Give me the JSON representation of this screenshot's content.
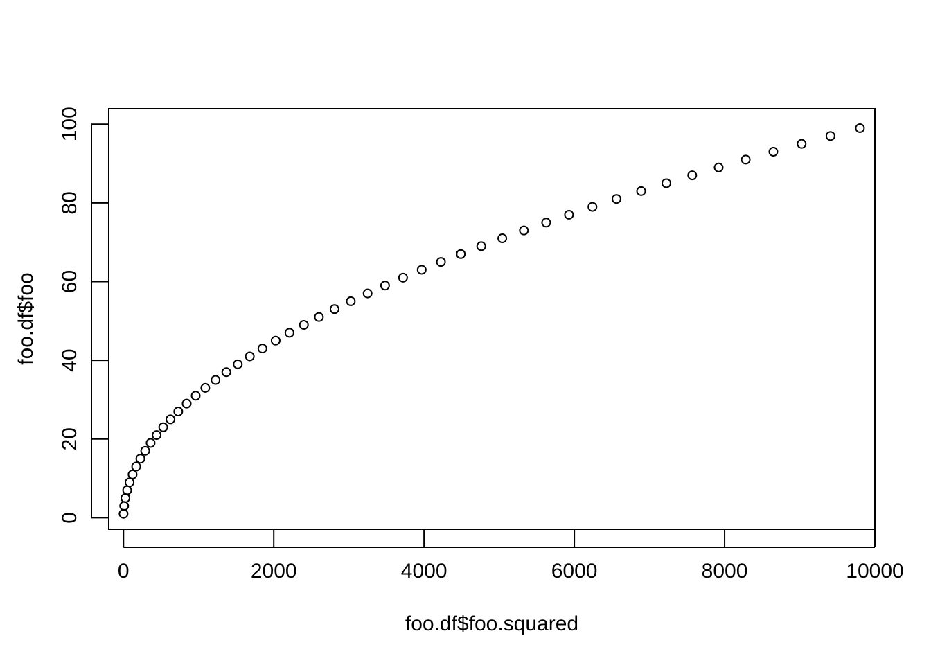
{
  "chart_data": {
    "type": "scatter",
    "title": "",
    "xlabel": "foo.df$foo.squared",
    "ylabel": "foo.df$foo",
    "xlim": [
      -196,
      10000
    ],
    "ylim": [
      -2.92,
      103.92
    ],
    "x_ticks": [
      0,
      2000,
      4000,
      6000,
      8000,
      10000
    ],
    "x_tick_labels": [
      "0",
      "2000",
      "4000",
      "6000",
      "8000",
      "10000"
    ],
    "y_ticks": [
      0,
      20,
      40,
      60,
      80,
      100
    ],
    "y_tick_labels": [
      "0",
      "20",
      "40",
      "60",
      "80",
      "100"
    ],
    "grid": false,
    "marker": "open-circle",
    "point_color": "#000000",
    "series": [
      {
        "x": [
          1,
          9,
          25,
          49,
          81,
          121,
          169,
          225,
          289,
          361,
          441,
          529,
          625,
          729,
          841,
          961,
          1089,
          1225,
          1369,
          1521,
          1681,
          1849,
          2025,
          2209,
          2401,
          2601,
          2809,
          3025,
          3249,
          3481,
          3721,
          3969,
          4225,
          4489,
          4761,
          5041,
          5329,
          5625,
          5929,
          6241,
          6561,
          6889,
          7225,
          7569,
          7921,
          8281,
          8649,
          9025,
          9409,
          9801
        ],
        "y": [
          1,
          3,
          5,
          7,
          9,
          11,
          13,
          15,
          17,
          19,
          21,
          23,
          25,
          27,
          29,
          31,
          33,
          35,
          37,
          39,
          41,
          43,
          45,
          47,
          49,
          51,
          53,
          55,
          57,
          59,
          61,
          63,
          65,
          67,
          69,
          71,
          73,
          75,
          77,
          79,
          81,
          83,
          85,
          87,
          89,
          91,
          93,
          95,
          97,
          99
        ]
      }
    ]
  }
}
